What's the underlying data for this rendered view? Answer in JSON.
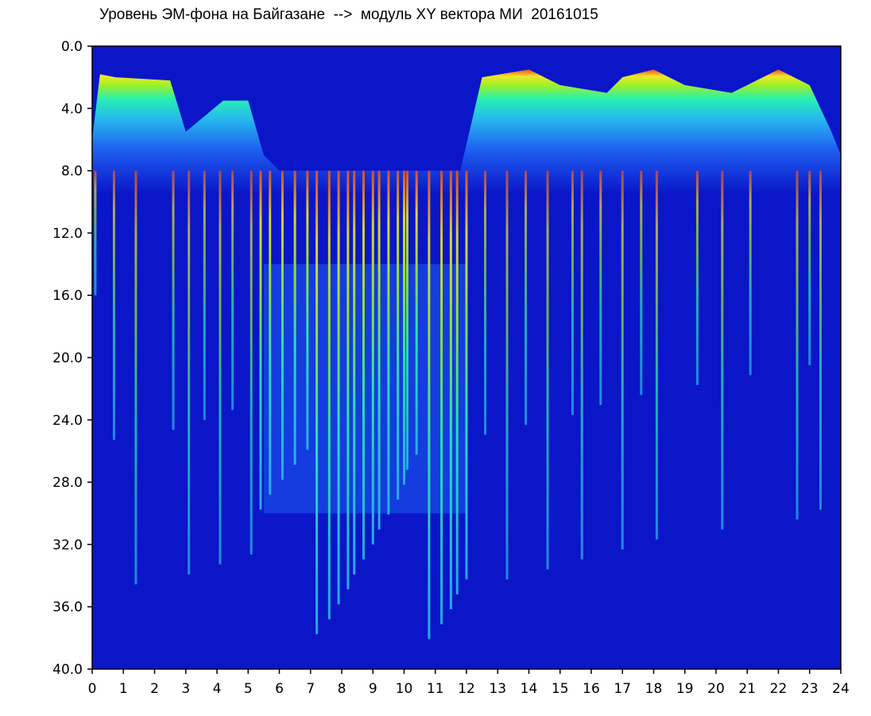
{
  "title": "Уровень ЭМ-фона на Байгазане  -->  модуль XY вектора МИ  20161015",
  "chart_data": {
    "type": "heatmap",
    "title": "Уровень ЭМ-фона на Байгазане  -->  модуль XY вектора МИ  20161015",
    "xlabel": "",
    "ylabel": "",
    "xlim": [
      0,
      24
    ],
    "ylim": [
      40.0,
      0.0
    ],
    "y_inverted": true,
    "x_ticks": [
      "0",
      "1",
      "2",
      "3",
      "4",
      "5",
      "6",
      "7",
      "8",
      "9",
      "10",
      "11",
      "12",
      "13",
      "14",
      "15",
      "16",
      "17",
      "18",
      "19",
      "20",
      "21",
      "22",
      "23",
      "24"
    ],
    "y_ticks": [
      "0.0",
      "4.0",
      "8.0",
      "12.0",
      "16.0",
      "20.0",
      "24.0",
      "28.0",
      "32.0",
      "36.0",
      "40.0"
    ],
    "grid": false,
    "colormap": [
      "#0a16c8",
      "#1e5cf0",
      "#26b8f0",
      "#28f0b0",
      "#9cf028",
      "#f0e628",
      "#f04a1e",
      "#ffffff"
    ],
    "upper_boundary": {
      "x": [
        0,
        0.25,
        0.75,
        2.5,
        3.0,
        4.2,
        5.0,
        5.5,
        6.0,
        7.0,
        8.0,
        9.0,
        10.0,
        11.0,
        11.8,
        12.5,
        14.0,
        15.0,
        16.5,
        17.0,
        18.0,
        19.0,
        20.5,
        22.0,
        23.0,
        23.7,
        24
      ],
      "y": [
        6,
        1.8,
        2.0,
        2.2,
        5.5,
        3.5,
        3.5,
        7.0,
        8.0,
        8.0,
        8.0,
        8.0,
        8.0,
        8.0,
        8.0,
        2.0,
        1.5,
        2.5,
        3.0,
        2.0,
        1.5,
        2.5,
        3.0,
        1.5,
        2.5,
        5.5,
        7.0
      ]
    },
    "spikes_x": [
      0.1,
      0.7,
      1.4,
      2.6,
      3.1,
      3.6,
      4.1,
      4.5,
      5.1,
      5.4,
      5.7,
      6.1,
      6.5,
      6.9,
      7.2,
      7.6,
      7.9,
      8.2,
      8.4,
      8.7,
      9.0,
      9.2,
      9.5,
      9.8,
      10.0,
      10.1,
      10.4,
      10.8,
      11.2,
      11.5,
      11.7,
      12.0,
      12.6,
      13.3,
      13.9,
      14.6,
      15.4,
      15.7,
      16.3,
      17.0,
      17.6,
      18.1,
      19.4,
      20.2,
      21.1,
      22.6,
      23.0,
      23.35
    ]
  }
}
